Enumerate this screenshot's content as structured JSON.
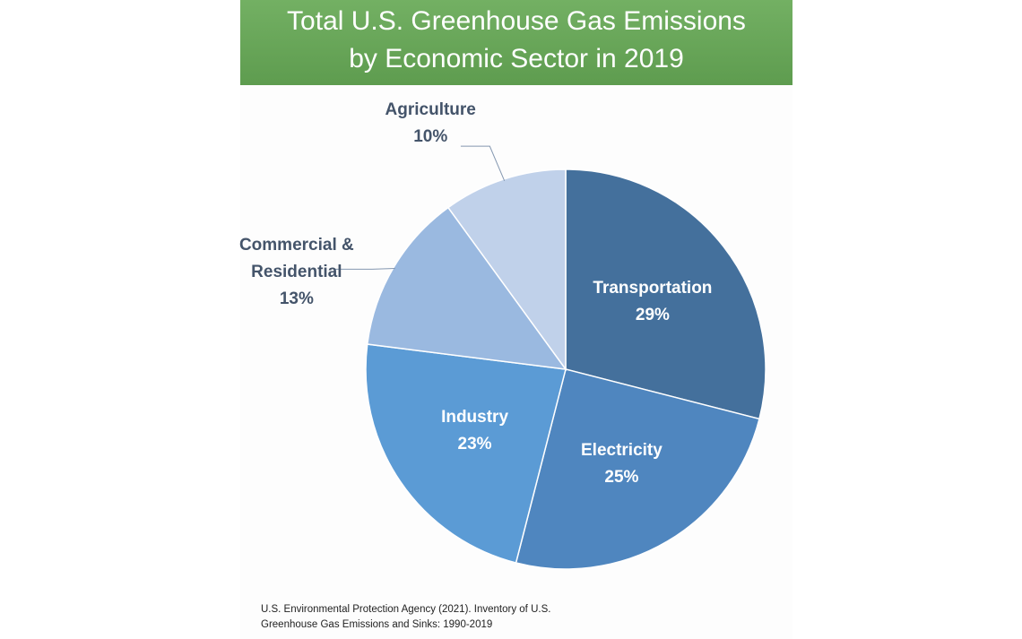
{
  "chart_data": {
    "type": "pie",
    "title": [
      "Total U.S. Greenhouse Gas Emissions",
      "by Economic Sector in 2019"
    ],
    "categories": [
      "Transportation",
      "Electricity",
      "Industry",
      "Commercial & Residential",
      "Agriculture"
    ],
    "values": [
      29,
      25,
      23,
      13,
      10
    ],
    "value_labels": [
      "29%",
      "25%",
      "23%",
      "13%",
      "10%"
    ],
    "colors": [
      "#44709c",
      "#4f86bf",
      "#5b9bd5",
      "#9ab9e0",
      "#c0d1ea"
    ],
    "source": [
      "U.S. Environmental Protection Agency (2021). Inventory of U.S.",
      "Greenhouse Gas Emissions and Sinks: 1990-2019"
    ]
  }
}
